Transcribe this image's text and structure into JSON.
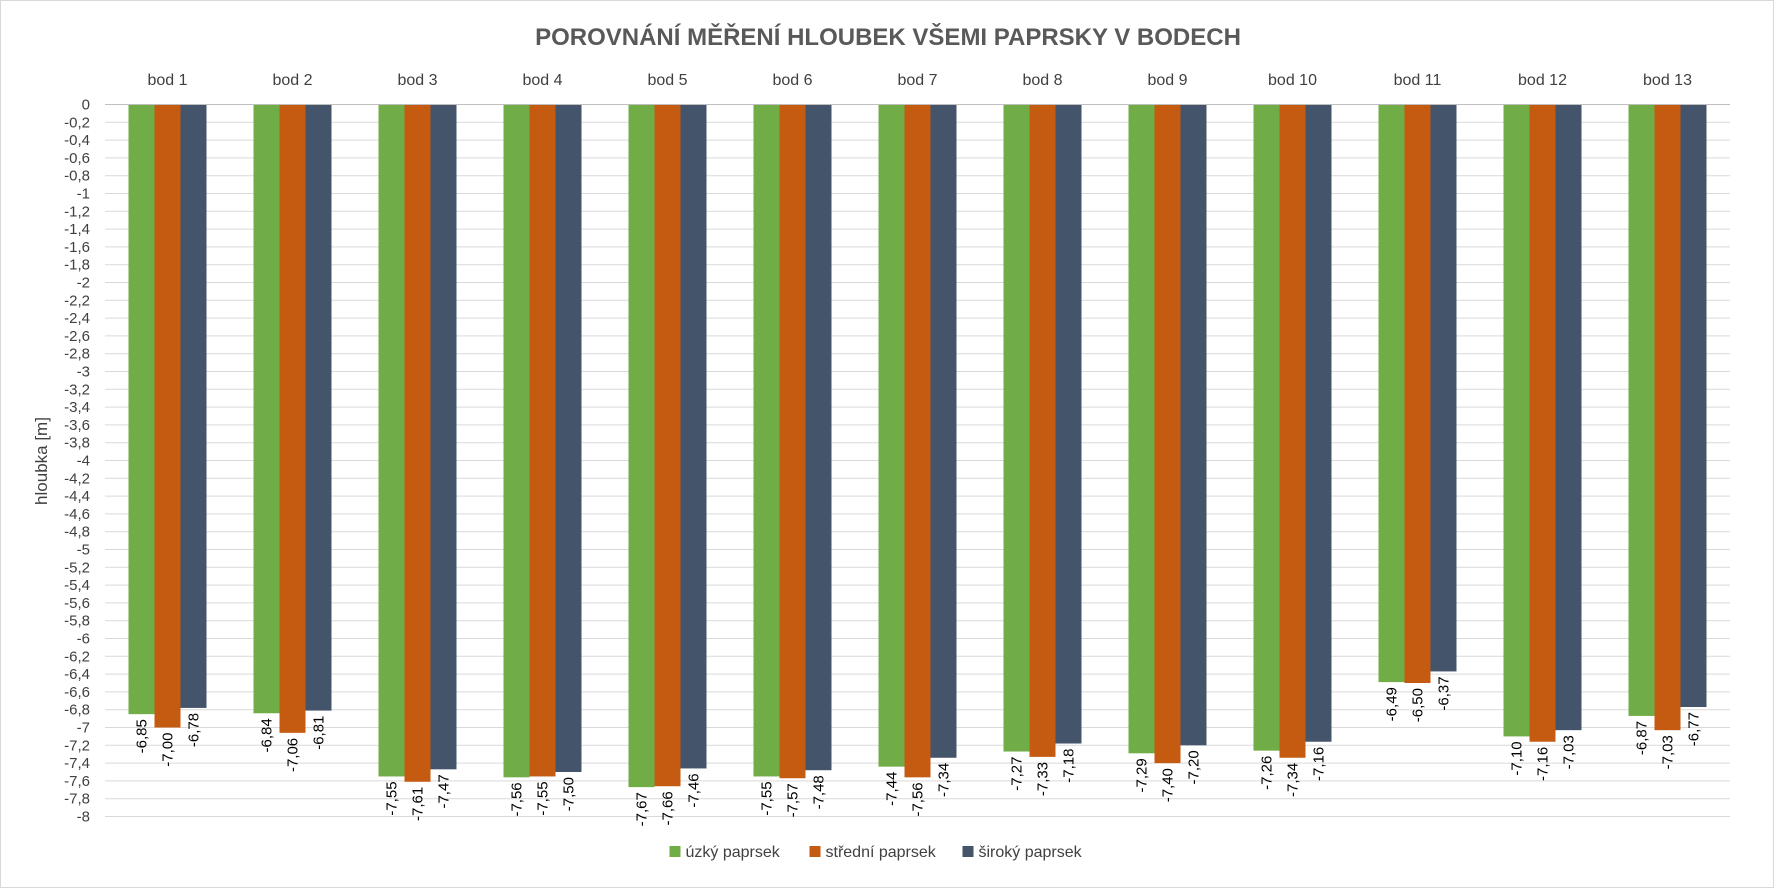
{
  "chart_data": {
    "type": "bar",
    "title": "POROVNÁNÍ MĚŘENÍ HLOUBEK VŠEMI PAPRSKY V BODECH",
    "ylabel": "hloubka [m]",
    "xlabel": "",
    "ylim": [
      -8,
      0
    ],
    "ytick_step": 0.2,
    "grid": true,
    "legend_position": "bottom",
    "category_axis_position": "top",
    "categories": [
      "bod 1",
      "bod 2",
      "bod 3",
      "bod 4",
      "bod 5",
      "bod 6",
      "bod 7",
      "bod 8",
      "bod 9",
      "bod 10",
      "bod 11",
      "bod 12",
      "bod 13"
    ],
    "series": [
      {
        "name": "úzký paprsek",
        "color": "#70ad47",
        "values": [
          -6.85,
          -6.84,
          -7.55,
          -7.56,
          -7.67,
          -7.55,
          -7.44,
          -7.27,
          -7.29,
          -7.26,
          -6.49,
          -7.1,
          -6.87
        ],
        "labels": [
          "-6,85",
          "-6,84",
          "-7,55",
          "-7,56",
          "-7,67",
          "-7,55",
          "-7,44",
          "-7,27",
          "-7,29",
          "-7,26",
          "-6,49",
          "-7,10",
          "-6,87"
        ]
      },
      {
        "name": "střední paprsek",
        "color": "#c55a11",
        "values": [
          -7.0,
          -7.06,
          -7.61,
          -7.55,
          -7.66,
          -7.57,
          -7.56,
          -7.33,
          -7.4,
          -7.34,
          -6.5,
          -7.16,
          -7.03
        ],
        "labels": [
          "-7,00",
          "-7,06",
          "-7,61",
          "-7,55",
          "-7,66",
          "-7,57",
          "-7,56",
          "-7,33",
          "-7,40",
          "-7,34",
          "-6,50",
          "-7,16",
          "-7,03"
        ]
      },
      {
        "name": "široký paprsek",
        "color": "#44546a",
        "values": [
          -6.78,
          -6.81,
          -7.47,
          -7.5,
          -7.46,
          -7.48,
          -7.34,
          -7.18,
          -7.2,
          -7.16,
          -6.37,
          -7.03,
          -6.77
        ],
        "labels": [
          "-6,78",
          "-6,81",
          "-7,47",
          "-7,50",
          "-7,46",
          "-7,48",
          "-7,34",
          "-7,18",
          "-7,20",
          "-7,16",
          "-6,37",
          "-7,03",
          "-6,77"
        ]
      }
    ]
  }
}
